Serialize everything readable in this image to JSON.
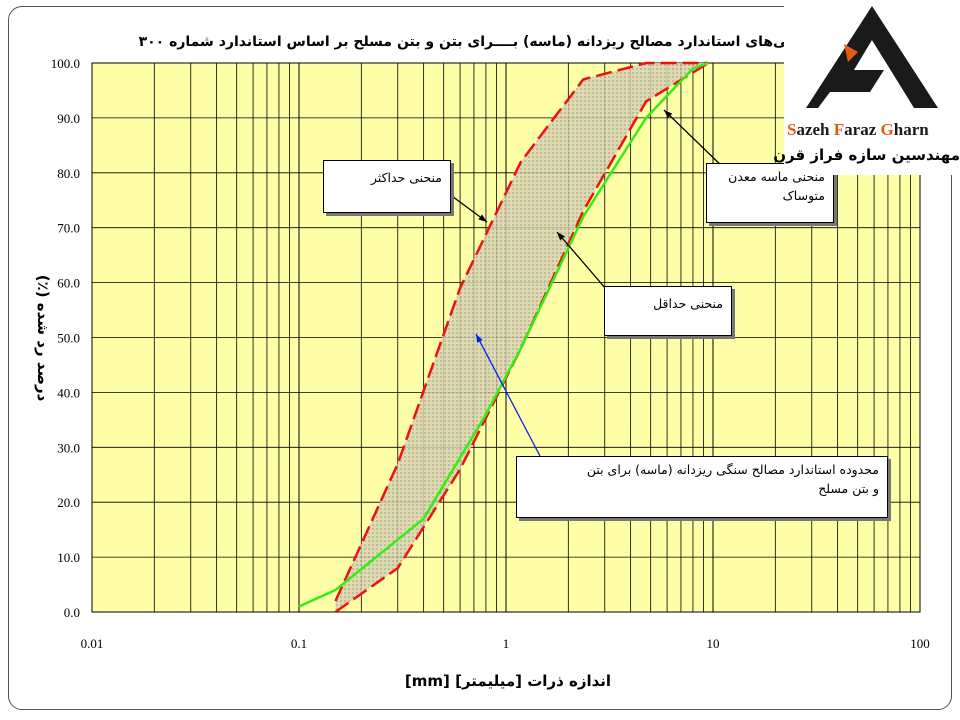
{
  "chart_data": {
    "type": "line",
    "title": "منحنی‌های استاندارد مصالح ریزدانه (ماسه) بــــرای بتن و بتن مسلح بر اساس استاندارد شماره ۳۰۰",
    "xlabel": "اندازه ذرات [میلیمتر] [mm]",
    "ylabel": "درصد رد شده (٪)",
    "xscale": "log",
    "xlim": [
      0.01,
      100
    ],
    "ylim": [
      0,
      100
    ],
    "x_ticks": [
      "0.01",
      "0.1",
      "1",
      "10",
      "100"
    ],
    "y_ticks": [
      "0.0",
      "10.0",
      "20.0",
      "30.0",
      "40.0",
      "50.0",
      "60.0",
      "70.0",
      "80.0",
      "90.0",
      "100.0"
    ],
    "grid": true,
    "background_color": "#ffffa8",
    "series": [
      {
        "role": "max",
        "color": "#ee1111",
        "style": "dashed",
        "points": [
          [
            0.15,
            2
          ],
          [
            0.3,
            27
          ],
          [
            0.6,
            59
          ],
          [
            1.18,
            82
          ],
          [
            2.36,
            97
          ],
          [
            4.75,
            100
          ],
          [
            9.5,
            100
          ]
        ]
      },
      {
        "role": "min",
        "color": "#ee1111",
        "style": "dashed",
        "points": [
          [
            0.15,
            0
          ],
          [
            0.3,
            8
          ],
          [
            0.6,
            26
          ],
          [
            1.18,
            48
          ],
          [
            2.36,
            73
          ],
          [
            4.75,
            93
          ],
          [
            9.5,
            100
          ]
        ]
      },
      {
        "role": "sample",
        "color": "#33ee11",
        "style": "solid",
        "points": [
          [
            0.1,
            1
          ],
          [
            0.15,
            4
          ],
          [
            0.4,
            17
          ],
          [
            0.8,
            36
          ],
          [
            1.18,
            48
          ],
          [
            2.36,
            72
          ],
          [
            4.75,
            90
          ],
          [
            8,
            99
          ],
          [
            9.5,
            100
          ]
        ]
      }
    ],
    "band_fill_color": "#c9c4a4"
  },
  "annotations": {
    "max_curve": "منحنی حداکثر",
    "min_curve": "منحنی حداقل",
    "sample_curve_line1": "منحنی ماسه معدن",
    "sample_curve_line2": "متوساک",
    "band_line1": "محدوده استاندارد مصالح سنگی ریزدانه (ماسه) برای بتن",
    "band_line2": "و بتن مسلح"
  },
  "logo": {
    "brand_s": "S",
    "brand_mid1": "azeh ",
    "brand_f": "F",
    "brand_mid2": "araz ",
    "brand_g": "G",
    "brand_end": "harn",
    "persian_name": "مهندسین سازه فراز قرن",
    "colors": {
      "accent": "#e85a10",
      "dark": "#1a1a1a"
    }
  }
}
